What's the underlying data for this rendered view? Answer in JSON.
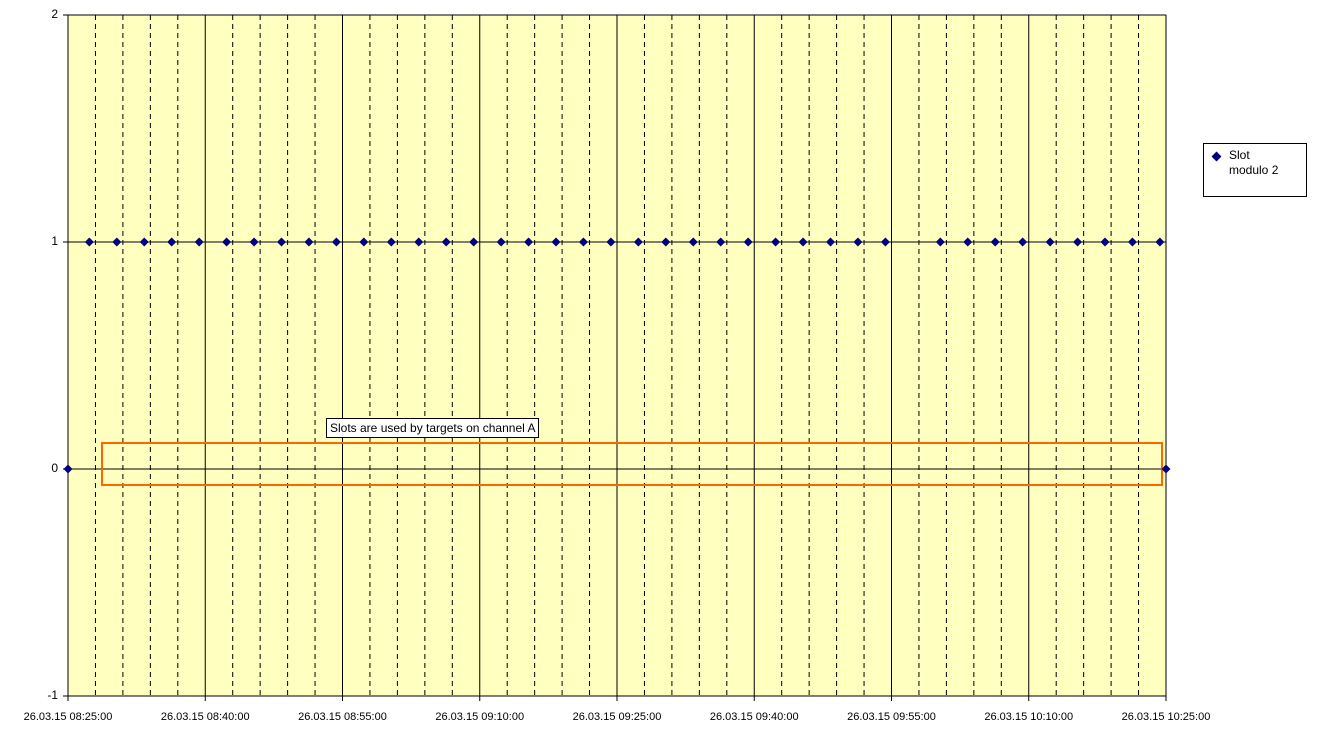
{
  "chart_data": {
    "type": "scatter",
    "x": [
      "26.03.15 08:25:00",
      "26.03.15 08:27:20",
      "26.03.15 08:30:20",
      "26.03.15 08:33:20",
      "26.03.15 08:36:20",
      "26.03.15 08:39:20",
      "26.03.15 08:42:20",
      "26.03.15 08:45:20",
      "26.03.15 08:48:20",
      "26.03.15 08:51:20",
      "26.03.15 08:54:20",
      "26.03.15 08:57:20",
      "26.03.15 09:00:20",
      "26.03.15 09:03:20",
      "26.03.15 09:06:20",
      "26.03.15 09:09:20",
      "26.03.15 09:12:20",
      "26.03.15 09:15:20",
      "26.03.15 09:18:20",
      "26.03.15 09:21:20",
      "26.03.15 09:24:20",
      "26.03.15 09:27:20",
      "26.03.15 09:30:20",
      "26.03.15 09:33:20",
      "26.03.15 09:36:20",
      "26.03.15 09:39:20",
      "26.03.15 09:42:20",
      "26.03.15 09:45:20",
      "26.03.15 09:48:20",
      "26.03.15 09:51:20",
      "26.03.15 09:54:20",
      "26.03.15 10:00:20",
      "26.03.15 10:03:20",
      "26.03.15 10:06:20",
      "26.03.15 10:09:20",
      "26.03.15 10:12:20",
      "26.03.15 10:15:20",
      "26.03.15 10:18:20",
      "26.03.15 10:21:20",
      "26.03.15 10:24:20",
      "26.03.15 10:25:00"
    ],
    "series": [
      {
        "name": "Slot modulo 2",
        "color": "#000080",
        "values": [
          0,
          1,
          1,
          1,
          1,
          1,
          1,
          1,
          1,
          1,
          1,
          1,
          1,
          1,
          1,
          1,
          1,
          1,
          1,
          1,
          1,
          1,
          1,
          1,
          1,
          1,
          1,
          1,
          1,
          1,
          1,
          1,
          1,
          1,
          1,
          1,
          1,
          1,
          1,
          1,
          0
        ]
      }
    ],
    "xlim": [
      "26.03.15 08:25:00",
      "26.03.15 10:25:00"
    ],
    "xticks": [
      "26.03.15 08:25:00",
      "26.03.15 08:40:00",
      "26.03.15 08:55:00",
      "26.03.15 09:10:00",
      "26.03.15 09:25:00",
      "26.03.15 09:40:00",
      "26.03.15 09:55:00",
      "26.03.15 10:10:00",
      "26.03.15 10:25:00"
    ],
    "ylim": [
      -1,
      2
    ],
    "yticks": [
      -1,
      0,
      1,
      2
    ],
    "grid": true,
    "legend": "right",
    "annotations": [
      "Slots are used by targets on channel A"
    ]
  }
}
